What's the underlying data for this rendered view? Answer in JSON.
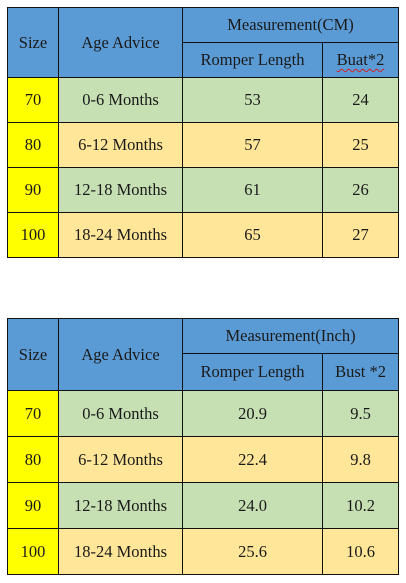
{
  "table_cm": {
    "header": {
      "size": "Size",
      "age": "Age Advice",
      "measurement": "Measurement(CM)",
      "romper": "Romper Length",
      "bust": "Buat*2"
    },
    "rows": [
      {
        "size": "70",
        "age": "0-6 Months",
        "romper": "53",
        "bust": "24"
      },
      {
        "size": "80",
        "age": "6-12 Months",
        "romper": "57",
        "bust": "25"
      },
      {
        "size": "90",
        "age": "12-18 Months",
        "romper": "61",
        "bust": "26"
      },
      {
        "size": "100",
        "age": "18-24 Months",
        "romper": "65",
        "bust": "27"
      }
    ]
  },
  "table_inch": {
    "header": {
      "size": "Size",
      "age": "Age Advice",
      "measurement": "Measurement(Inch)",
      "romper": "Romper Length",
      "bust": "Bust *2"
    },
    "rows": [
      {
        "size": "70",
        "age": "0-6 Months",
        "romper": "20.9",
        "bust": "9.5"
      },
      {
        "size": "80",
        "age": "6-12 Months",
        "romper": "22.4",
        "bust": "9.8"
      },
      {
        "size": "90",
        "age": "12-18 Months",
        "romper": "24.0",
        "bust": "10.2"
      },
      {
        "size": "100",
        "age": "18-24 Months",
        "romper": "25.6",
        "bust": "10.6"
      }
    ]
  },
  "colors": {
    "header_blue": "#5b9bd5",
    "size_yellow": "#ffff00",
    "row_green": "#c6e0b4",
    "row_tan": "#ffe699"
  }
}
